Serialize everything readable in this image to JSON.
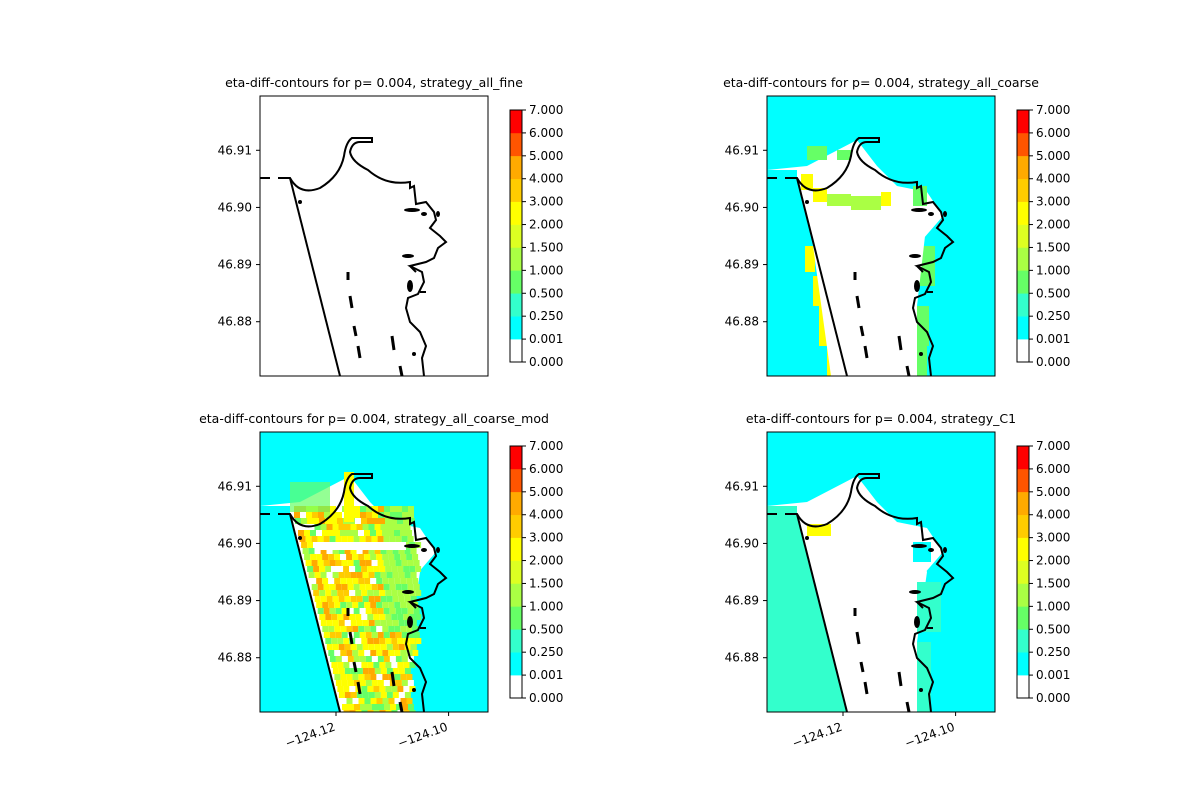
{
  "chart_data": [
    {
      "type": "heatmap",
      "title": "eta-diff-contours for p= 0.004, strategy_all_fine",
      "ytick_labels": [
        "46.91",
        "46.90",
        "46.89",
        "46.88"
      ],
      "yticks": [
        46.91,
        46.9,
        46.89,
        46.88
      ],
      "xtick_labels": [],
      "xlim": [
        -124.1335,
        -124.093
      ],
      "ylim": [
        46.8705,
        46.9195
      ],
      "fill": "none",
      "colorbar": {
        "levels": [
          "0.000",
          "0.001",
          "0.250",
          "0.500",
          "1.000",
          "1.500",
          "2.000",
          "3.000",
          "4.000",
          "5.000",
          "6.000",
          "7.000"
        ]
      }
    },
    {
      "type": "heatmap",
      "title": "eta-diff-contours for p= 0.004, strategy_all_coarse",
      "ytick_labels": [
        "46.91",
        "46.90",
        "46.89",
        "46.88"
      ],
      "yticks": [
        46.91,
        46.9,
        46.89,
        46.88
      ],
      "xtick_labels": [],
      "xlim": [
        -124.1335,
        -124.093
      ],
      "ylim": [
        46.8705,
        46.9195
      ],
      "fill": "coarse",
      "colorbar": {
        "levels": [
          "0.000",
          "0.001",
          "0.250",
          "0.500",
          "1.000",
          "1.500",
          "2.000",
          "3.000",
          "4.000",
          "5.000",
          "6.000",
          "7.000"
        ]
      }
    },
    {
      "type": "heatmap",
      "title": "eta-diff-contours for p= 0.004, strategy_all_coarse_mod",
      "ytick_labels": [
        "46.91",
        "46.90",
        "46.89",
        "46.88"
      ],
      "yticks": [
        46.91,
        46.9,
        46.89,
        46.88
      ],
      "xtick_labels": [
        "−124.12",
        "−124.10"
      ],
      "xticks": [
        -124.12,
        -124.1
      ],
      "xlim": [
        -124.1335,
        -124.093
      ],
      "ylim": [
        46.8705,
        46.9195
      ],
      "fill": "coarse_mod",
      "colorbar": {
        "levels": [
          "0.000",
          "0.001",
          "0.250",
          "0.500",
          "1.000",
          "1.500",
          "2.000",
          "3.000",
          "4.000",
          "5.000",
          "6.000",
          "7.000"
        ]
      }
    },
    {
      "type": "heatmap",
      "title": "eta-diff-contours for p= 0.004, strategy_C1",
      "ytick_labels": [
        "46.91",
        "46.90",
        "46.89",
        "46.88"
      ],
      "yticks": [
        46.91,
        46.9,
        46.89,
        46.88
      ],
      "xtick_labels": [
        "−124.12",
        "−124.10"
      ],
      "xticks": [
        -124.12,
        -124.1
      ],
      "xlim": [
        -124.1335,
        -124.093
      ],
      "ylim": [
        46.8705,
        46.9195
      ],
      "fill": "c1",
      "colorbar": {
        "levels": [
          "0.000",
          "0.001",
          "0.250",
          "0.500",
          "1.000",
          "1.500",
          "2.000",
          "3.000",
          "4.000",
          "5.000",
          "6.000",
          "7.000"
        ]
      }
    }
  ],
  "colors": {
    "level_colors": [
      "#ffffff",
      "#00ffff",
      "#33ffcc",
      "#66ff66",
      "#aaff44",
      "#ddff22",
      "#ffff00",
      "#ffcc00",
      "#ffaa00",
      "#ff5500",
      "#ff0000"
    ]
  }
}
